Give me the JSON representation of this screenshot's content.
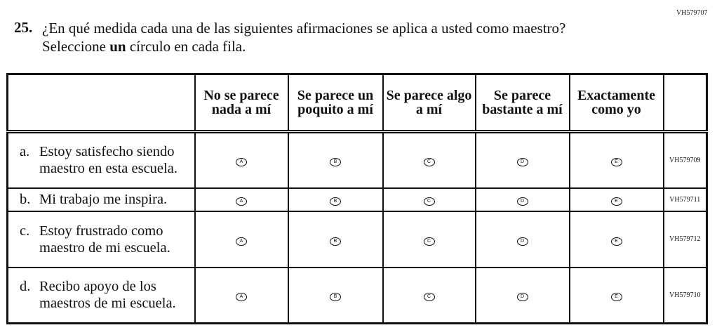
{
  "form_code": "VH579707",
  "question": {
    "number": "25.",
    "text_before": "¿En qué medida cada una de las siguientes afirmaciones se aplica a usted como maestro? Seleccione ",
    "text_bold": "un",
    "text_after": " círculo en cada fila."
  },
  "columns": [
    "No se parece nada a mí",
    "Se parece un poquito a mí",
    "Se parece algo a mí",
    "Se parece bastante a mí",
    "Exactamente como yo"
  ],
  "bubbles": [
    "A",
    "B",
    "C",
    "D",
    "E"
  ],
  "rows": [
    {
      "label": "a.",
      "text": "Estoy satisfecho siendo maestro en esta escuela.",
      "code": "VH579709"
    },
    {
      "label": "b.",
      "text": "Mi trabajo me inspira.",
      "code": "VH579711"
    },
    {
      "label": "c.",
      "text": "Estoy frustrado como maestro de mi escuela.",
      "code": "VH579712"
    },
    {
      "label": "d.",
      "text": "Recibo apoyo de los maestros de mi escuela.",
      "code": "VH579710"
    }
  ]
}
